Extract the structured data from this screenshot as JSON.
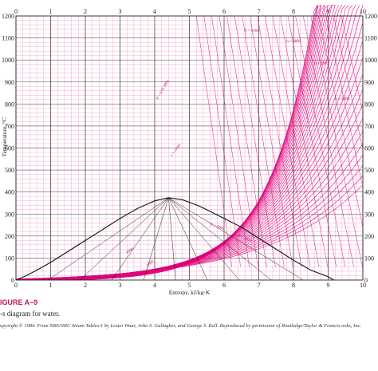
{
  "chart_data": {
    "type": "line",
    "xlabel": "Entropy, kJ/kg·K",
    "ylabel": "Temperature, °C",
    "xlim": [
      0,
      10
    ],
    "ylim": [
      0,
      1200
    ],
    "x_ticks": [
      0,
      1,
      2,
      3,
      4,
      5,
      6,
      7,
      8,
      9,
      10
    ],
    "y_ticks": [
      0,
      100,
      200,
      300,
      400,
      500,
      600,
      700,
      800,
      900,
      1000,
      1100,
      1200
    ],
    "y_ticks_right": [
      "0",
      "100",
      "200",
      "300",
      "400",
      "500",
      "600",
      "700",
      "800",
      "900",
      "1000",
      "1100",
      "1200"
    ],
    "grid": true,
    "colors": {
      "grid": "#e0007a",
      "dome": "#111111",
      "axis": "#222222",
      "caption_accent": "#c2185b"
    },
    "series": [
      {
        "x": [
          0.0,
          0.3,
          0.6,
          1.0,
          1.5,
          2.0,
          2.5,
          3.0,
          3.5,
          4.0,
          4.4,
          4.8,
          5.3,
          6.0,
          6.5,
          7.0,
          7.5,
          8.0,
          8.5,
          9.0,
          9.16
        ],
        "y": [
          0,
          20,
          45,
          80,
          130,
          180,
          230,
          280,
          325,
          360,
          374,
          365,
          335,
          280,
          240,
          190,
          140,
          90,
          45,
          15,
          0
        ]
      }
    ],
    "curve_labels": [
      "P = 0.01 MPa",
      "v = const",
      "h = const",
      "h = 3800",
      "h = 3600",
      "h = 3400",
      "h = 3200",
      "h = 3000",
      "4000",
      "2800",
      "x = 0.9",
      "x = 0.8",
      "x = 0.7",
      "x = 0.6",
      "x = 0.5",
      "x = 0.4",
      "x = 0.3",
      "x = 0.2",
      "x = 0.1"
    ]
  },
  "caption": {
    "figure_label": "IGURE A–9",
    "title": "-s diagram for water.",
    "credit": "opyright © 1984. From NBS/NRC Steam Tables/1 by Lester Haar, John S. Gallagher, and George S. Kell. Reproduced by permission of Routledge/Taylor & Francis ooks, Inc."
  }
}
